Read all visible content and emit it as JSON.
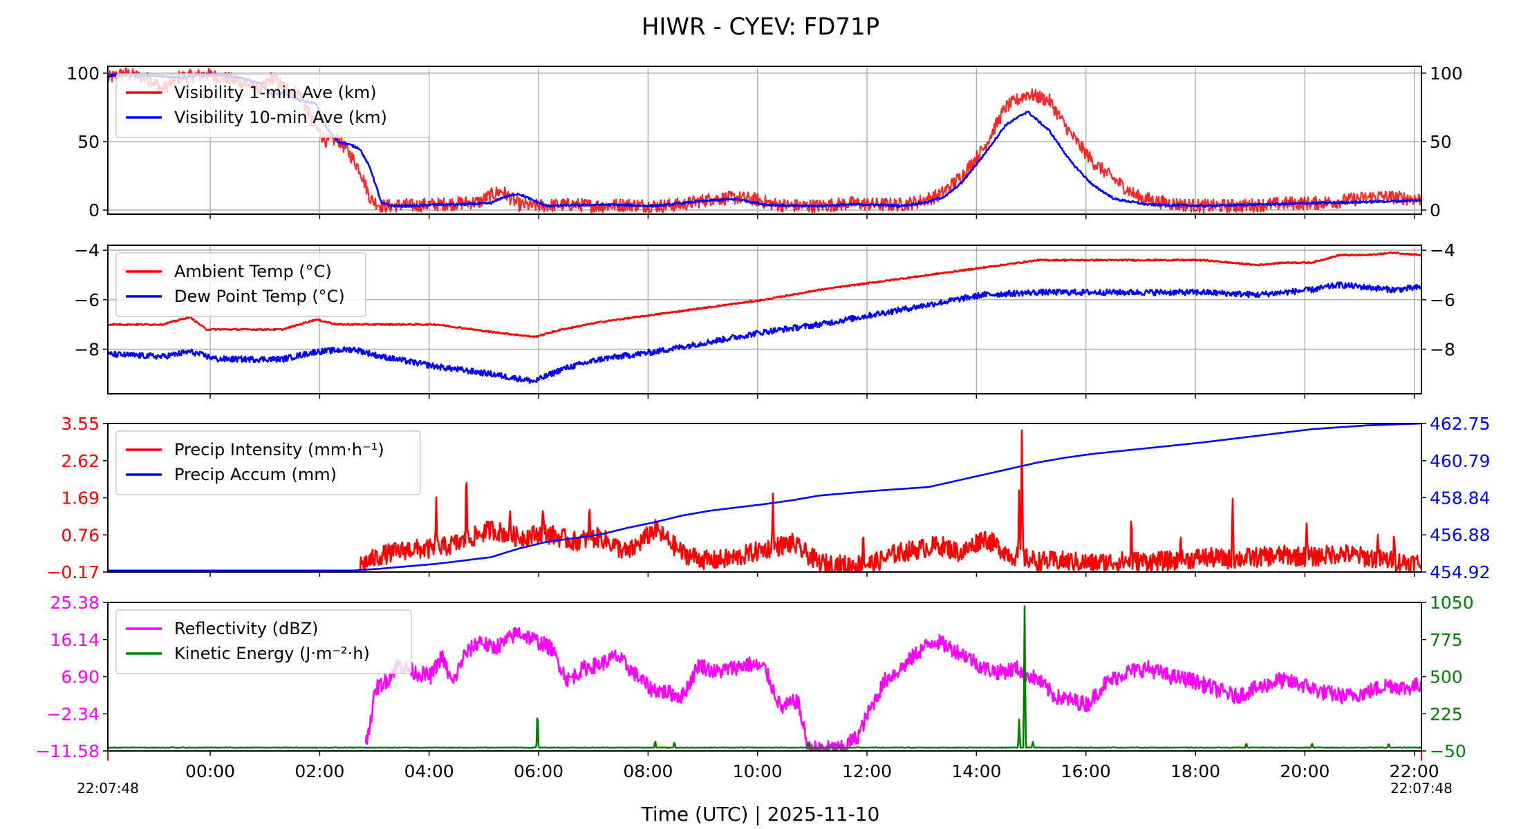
{
  "figure": {
    "title": "HIWR - CYEV: FD71P",
    "xlabel": "Time (UTC)  |  2025-11-10",
    "start_label": "22:07:48",
    "end_label": "22:07:48"
  },
  "colors": {
    "red": "#ff0000",
    "blue": "#0000ff",
    "magenta": "#ff00ff",
    "green": "#008000",
    "black": "#000000",
    "grid": "#b0b0b0"
  },
  "chart_data": [
    {
      "type": "line",
      "panel": "visibility",
      "x_unit": "hours since 2025-11-09 22:07:48 UTC",
      "xlim": [
        0,
        24
      ],
      "x_ticks": [
        1.87,
        3.87,
        5.87,
        7.87,
        9.87,
        11.87,
        13.87,
        15.87,
        17.87,
        19.87,
        21.87,
        23.87
      ],
      "x_tick_labels": [
        "00:00",
        "02:00",
        "04:00",
        "06:00",
        "08:00",
        "10:00",
        "12:00",
        "14:00",
        "16:00",
        "18:00",
        "20:00",
        "22:00"
      ],
      "ylim": [
        -3,
        105
      ],
      "y_ticks": [
        0,
        50,
        100
      ],
      "y_tick_labels": [
        "0",
        "50",
        "100"
      ],
      "right_ticks": [
        0,
        50,
        100
      ],
      "right_tick_labels": [
        "0",
        "50",
        "100"
      ],
      "grid": true,
      "legend": "upper-left",
      "series": [
        {
          "name": "Visibility 1-min Ave (km)",
          "color": "#ff0000",
          "axis": "left",
          "noise": 5,
          "x": [
            0,
            0.3,
            0.8,
            1.0,
            1.3,
            1.8,
            2.3,
            2.8,
            3.0,
            3.2,
            3.5,
            3.8,
            4.0,
            4.2,
            4.4,
            4.6,
            4.8,
            5.0,
            5.2,
            5.4,
            5.6,
            5.8,
            6.0,
            6.4,
            6.8,
            7.0,
            7.2,
            7.5,
            7.8,
            8.5,
            9.0,
            9.5,
            10.0,
            10.5,
            11.0,
            11.5,
            11.8,
            12.2,
            12.6,
            13.0,
            13.3,
            13.6,
            14.0,
            14.5,
            14.8,
            15.2,
            15.6,
            16.0,
            16.4,
            16.8,
            17.2,
            17.6,
            18.0,
            18.4,
            18.8,
            19.2,
            19.6,
            20.0,
            20.6,
            21.2,
            21.6,
            22.0,
            22.4,
            22.8,
            23.2,
            23.6,
            24.0
          ],
          "y": [
            96,
            100,
            95,
            88,
            97,
            99,
            95,
            88,
            97,
            90,
            85,
            60,
            50,
            52,
            42,
            30,
            8,
            3,
            3,
            4,
            3,
            4,
            4,
            5,
            6,
            11,
            14,
            4,
            3,
            4,
            3,
            4,
            3,
            4,
            8,
            9,
            8,
            4,
            3,
            3,
            4,
            5,
            4,
            4,
            6,
            11,
            25,
            45,
            75,
            85,
            80,
            55,
            35,
            22,
            10,
            6,
            4,
            3,
            3,
            4,
            5,
            5,
            6,
            8,
            10,
            9,
            8
          ]
        },
        {
          "name": "Visibility 10-min Ave (km)",
          "color": "#0000ff",
          "axis": "left",
          "noise": 0.8,
          "x": [
            0,
            0.3,
            0.8,
            1.3,
            1.8,
            2.3,
            2.8,
            3.0,
            3.2,
            3.5,
            3.8,
            4.0,
            4.2,
            4.4,
            4.6,
            4.8,
            5.0,
            5.2,
            5.6,
            6.0,
            6.4,
            7.0,
            7.2,
            7.5,
            8.0,
            9.0,
            10.0,
            11.0,
            11.5,
            12.0,
            12.5,
            13.0,
            13.5,
            14.0,
            14.5,
            15.0,
            15.3,
            15.6,
            16.0,
            16.4,
            16.8,
            17.2,
            17.6,
            18.0,
            18.4,
            19.0,
            20.0,
            21.0,
            22.0,
            23.0,
            24.0
          ],
          "y": [
            98,
            99,
            98,
            97,
            99,
            98,
            92,
            84,
            86,
            80,
            78,
            60,
            50,
            48,
            45,
            30,
            5,
            3,
            3,
            4,
            4,
            5,
            9,
            12,
            3,
            4,
            3,
            7,
            8,
            4,
            3,
            3,
            4,
            4,
            3,
            6,
            10,
            20,
            40,
            62,
            72,
            58,
            35,
            18,
            8,
            4,
            3,
            4,
            5,
            6,
            7
          ]
        }
      ]
    },
    {
      "type": "line",
      "panel": "temperature",
      "xlim": [
        0,
        24
      ],
      "ylim": [
        -9.8,
        -3.8
      ],
      "y_ticks": [
        -4,
        -6,
        -8
      ],
      "y_tick_labels": [
        "−4",
        "−6",
        "−8"
      ],
      "right_ticks": [
        -4,
        -6,
        -8
      ],
      "right_tick_labels": [
        "−4",
        "−6",
        "−8"
      ],
      "grid": true,
      "legend": "upper-left",
      "series": [
        {
          "name": "Ambient Temp (°C)",
          "color": "#ff0000",
          "axis": "left",
          "noise": 0.03,
          "x": [
            0,
            1.0,
            1.5,
            1.8,
            2.5,
            3.2,
            3.8,
            4.2,
            5.0,
            6.0,
            7.0,
            7.8,
            8.3,
            9.0,
            10.0,
            11.0,
            12.0,
            13.0,
            14.0,
            15.0,
            16.0,
            17.0,
            18.0,
            19.0,
            20.0,
            21.0,
            21.5,
            22.0,
            22.5,
            23.0,
            23.5,
            24.0
          ],
          "y": [
            -7.0,
            -7.0,
            -6.7,
            -7.2,
            -7.2,
            -7.2,
            -6.8,
            -7.0,
            -7.0,
            -7.0,
            -7.3,
            -7.5,
            -7.2,
            -6.9,
            -6.6,
            -6.3,
            -6.0,
            -5.6,
            -5.3,
            -5.0,
            -4.7,
            -4.4,
            -4.4,
            -4.4,
            -4.4,
            -4.6,
            -4.5,
            -4.5,
            -4.2,
            -4.2,
            -4.1,
            -4.2
          ]
        },
        {
          "name": "Dew Point Temp (°C)",
          "color": "#0000ff",
          "axis": "left",
          "noise": 0.12,
          "x": [
            0,
            1.0,
            1.5,
            2.0,
            2.5,
            3.2,
            3.8,
            4.5,
            5.0,
            6.0,
            7.0,
            7.8,
            8.3,
            9.0,
            10.0,
            11.0,
            12.0,
            13.0,
            14.0,
            15.0,
            16.0,
            17.0,
            18.0,
            19.0,
            20.0,
            21.0,
            21.5,
            22.0,
            22.5,
            23.0,
            23.5,
            24.0
          ],
          "y": [
            -8.2,
            -8.3,
            -8.1,
            -8.4,
            -8.4,
            -8.4,
            -8.1,
            -8.0,
            -8.3,
            -8.7,
            -9.0,
            -9.3,
            -8.8,
            -8.4,
            -8.1,
            -7.7,
            -7.3,
            -7.0,
            -6.6,
            -6.2,
            -5.8,
            -5.7,
            -5.7,
            -5.7,
            -5.7,
            -5.8,
            -5.7,
            -5.6,
            -5.4,
            -5.5,
            -5.6,
            -5.5
          ]
        }
      ]
    },
    {
      "type": "line",
      "panel": "precipitation",
      "xlim": [
        0,
        24
      ],
      "ylim": [
        -0.17,
        3.55
      ],
      "y_ticks": [
        -0.17,
        0.76,
        1.69,
        2.62,
        3.55
      ],
      "y_tick_labels": [
        "−0.17",
        "0.76",
        "1.69",
        "2.62",
        "3.55"
      ],
      "right_ylim": [
        454.92,
        462.75
      ],
      "right_ticks": [
        454.92,
        456.88,
        458.84,
        460.79,
        462.75
      ],
      "right_tick_labels": [
        "454.92",
        "456.88",
        "458.84",
        "460.79",
        "462.75"
      ],
      "grid": false,
      "legend": "upper-left",
      "series": [
        {
          "name": "Precip Intensity (mm·h⁻¹)",
          "color": "#ff0000",
          "axis": "left",
          "noise": 0.25,
          "x": [
            0,
            4.5,
            4.6,
            5.0,
            5.5,
            6.0,
            6.5,
            7.0,
            7.5,
            8.0,
            8.5,
            9.0,
            9.5,
            10.0,
            10.5,
            11.0,
            11.5,
            12.0,
            12.5,
            13.0,
            13.5,
            14.0,
            14.4,
            14.8,
            15.2,
            15.6,
            16.0,
            16.5,
            17.0,
            17.5,
            18.0,
            18.5,
            19.0,
            19.5,
            20.0,
            20.5,
            21.0,
            21.5,
            22.0,
            22.5,
            23.0,
            23.5,
            24.0
          ],
          "y": [
            null,
            null,
            0.0,
            0.25,
            0.4,
            0.4,
            0.6,
            0.9,
            0.7,
            0.8,
            0.6,
            0.7,
            0.3,
            0.9,
            0.3,
            0.1,
            0.2,
            0.4,
            0.55,
            0.05,
            0.0,
            0.05,
            0.3,
            0.4,
            0.5,
            0.3,
            0.7,
            0.25,
            0.1,
            0.1,
            0.05,
            0.1,
            0.1,
            0.1,
            0.2,
            0.15,
            0.2,
            0.25,
            0.2,
            0.3,
            0.2,
            0.1,
            0.05
          ],
          "spikes": [
            [
              6.55,
              2.7
            ],
            [
              6.0,
              1.7
            ],
            [
              7.35,
              1.4
            ],
            [
              7.95,
              1.5
            ],
            [
              8.8,
              1.6
            ],
            [
              12.15,
              1.9
            ],
            [
              13.8,
              1.0
            ],
            [
              16.7,
              3.55
            ],
            [
              16.65,
              2.0
            ],
            [
              18.7,
              1.4
            ],
            [
              20.55,
              1.8
            ],
            [
              21.9,
              1.2
            ],
            [
              19.6,
              0.9
            ],
            [
              23.2,
              0.9
            ],
            [
              23.5,
              1.0
            ]
          ]
        },
        {
          "name": "Precip Accum (mm)",
          "color": "#0000ff",
          "axis": "right",
          "noise": 0,
          "x": [
            0,
            4.5,
            5.0,
            6.0,
            7.0,
            7.5,
            8.0,
            9.0,
            9.5,
            10.0,
            10.5,
            11.0,
            12.0,
            12.5,
            13.0,
            14.0,
            14.5,
            15.0,
            16.0,
            17.0,
            17.5,
            18.0,
            19.0,
            20.0,
            21.0,
            22.0,
            23.0,
            24.0
          ],
          "y": [
            455.0,
            455.0,
            455.1,
            455.35,
            455.7,
            456.15,
            456.5,
            456.9,
            457.25,
            457.55,
            457.9,
            458.15,
            458.5,
            458.7,
            458.95,
            459.2,
            459.3,
            459.4,
            460.05,
            460.7,
            460.95,
            461.15,
            461.45,
            461.75,
            462.1,
            462.45,
            462.65,
            462.75
          ]
        }
      ]
    },
    {
      "type": "line",
      "panel": "reflectivity",
      "xlim": [
        0,
        24
      ],
      "ylim": [
        -11.58,
        25.38
      ],
      "y_ticks": [
        -11.58,
        -2.34,
        6.9,
        16.14,
        25.38
      ],
      "y_tick_labels": [
        "−11.58",
        "−2.34",
        "6.90",
        "16.14",
        "25.38"
      ],
      "right_ylim": [
        -50,
        1050
      ],
      "right_ticks": [
        -50,
        225,
        500,
        775,
        1050
      ],
      "right_tick_labels": [
        "−50",
        "225",
        "500",
        "775",
        "1050"
      ],
      "grid": false,
      "legend": "upper-left",
      "series": [
        {
          "name": "Reflectivity (dBZ)",
          "color": "#ff00ff",
          "axis": "left",
          "noise": 2.0,
          "x": [
            0,
            4.6,
            4.7,
            4.9,
            5.1,
            5.3,
            5.6,
            5.9,
            6.1,
            6.3,
            6.5,
            6.8,
            7.0,
            7.2,
            7.5,
            7.8,
            8.1,
            8.4,
            8.7,
            9.0,
            9.3,
            9.6,
            9.9,
            10.2,
            10.5,
            10.8,
            11.1,
            11.4,
            11.7,
            12.0,
            12.3,
            12.6,
            12.8,
            13.1,
            13.4,
            13.7,
            13.9,
            14.2,
            14.5,
            14.8,
            15.1,
            15.4,
            15.7,
            16.0,
            16.3,
            16.6,
            17.0,
            17.3,
            17.6,
            17.9,
            18.2,
            18.6,
            19.0,
            19.4,
            19.8,
            20.2,
            20.6,
            21.0,
            21.4,
            21.8,
            22.2,
            22.6,
            23.0,
            23.4,
            23.7,
            24.0
          ],
          "y": [
            null,
            null,
            -11.0,
            4.0,
            6.0,
            10.0,
            8.0,
            7.0,
            12.0,
            5.0,
            12.0,
            16.0,
            14.0,
            15.0,
            18.0,
            16.0,
            14.0,
            6.0,
            9.0,
            10.0,
            12.0,
            8.0,
            4.0,
            3.0,
            2.0,
            10.0,
            8.0,
            9.0,
            10.0,
            9.0,
            -1.0,
            1.0,
            -11.0,
            -11.0,
            -11.0,
            -8.0,
            -2.0,
            6.0,
            9.0,
            13.0,
            16.0,
            14.0,
            12.0,
            9.0,
            8.0,
            9.0,
            6.0,
            2.0,
            1.0,
            0.0,
            5.0,
            8.0,
            9.0,
            7.0,
            6.0,
            4.0,
            2.0,
            4.0,
            6.0,
            5.0,
            3.0,
            2.0,
            3.0,
            5.0,
            4.0,
            5.0
          ]
        },
        {
          "name": "Kinetic Energy (J·m⁻²·h)",
          "color": "#008000",
          "axis": "right",
          "noise": 2,
          "x": [
            0,
            24
          ],
          "y": [
            -25,
            -25
          ],
          "spikes": [
            [
              7.85,
              280
            ],
            [
              10.0,
              30
            ],
            [
              10.35,
              20
            ],
            [
              12.8,
              20
            ],
            [
              16.75,
              1050
            ],
            [
              16.65,
              200
            ],
            [
              16.9,
              20
            ],
            [
              20.8,
              10
            ],
            [
              22.0,
              10
            ],
            [
              23.4,
              10
            ]
          ]
        }
      ]
    }
  ]
}
